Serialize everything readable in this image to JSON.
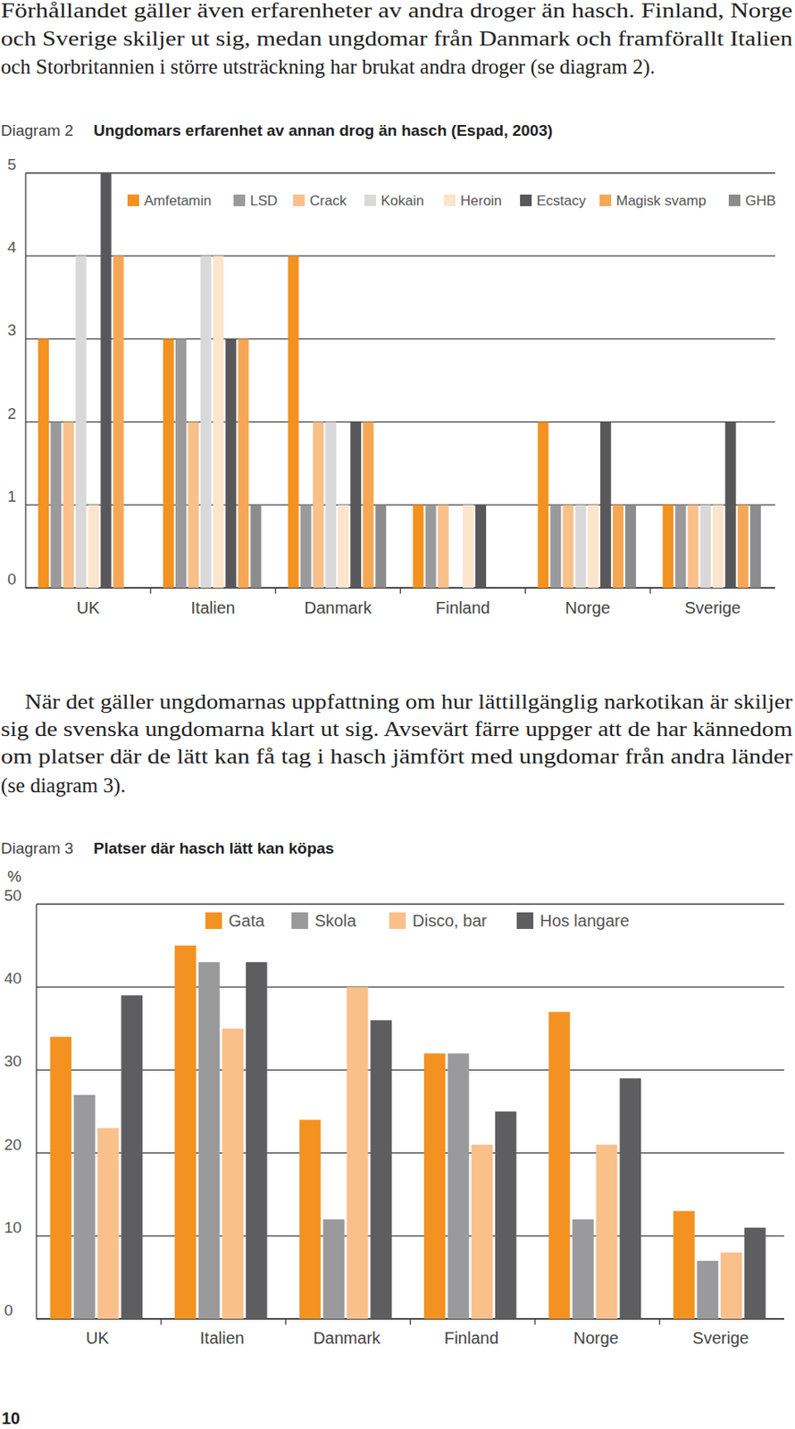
{
  "paragraphs": [
    [
      "Förhållandet gäller även erfarenheter av andra droger än hasch. Finland, Norge",
      "och Sverige skiljer ut sig, medan ungdomar från Danmark och framförallt Italien",
      "och Storbritannien i större utsträckning har brukat andra droger (se diagram 2)."
    ],
    [
      "När det gäller ungdomarnas uppfattning om hur lättillgänglig narkotikan är skiljer",
      "sig de svenska ungdomarna klart ut sig. Avsevärt färre uppger att de har kännedom",
      "om platser där de lätt kan få tag i hasch jämfört med ungdomar från andra länder",
      "(se diagram 3)."
    ]
  ],
  "page_number": "10",
  "chart_data": [
    {
      "type": "bar",
      "figure_label": "Diagram 2",
      "title": "Ungdomars erfarenhet av annan drog än hasch (Espad, 2003)",
      "categories": [
        "UK",
        "Italien",
        "Danmark",
        "Finland",
        "Norge",
        "Sverige"
      ],
      "series": [
        {
          "name": "Amfetamin",
          "color": "#f39220",
          "values": [
            3,
            3,
            4,
            1,
            2,
            1
          ]
        },
        {
          "name": "LSD",
          "color": "#9a9a9c",
          "values": [
            2,
            3,
            1,
            1,
            1,
            1
          ]
        },
        {
          "name": "Crack",
          "color": "#f9c08a",
          "values": [
            2,
            2,
            2,
            1,
            1,
            1
          ]
        },
        {
          "name": "Kokain",
          "color": "#d9d9d9",
          "values": [
            4,
            4,
            2,
            0,
            1,
            1
          ]
        },
        {
          "name": "Heroin",
          "color": "#fde4cc",
          "values": [
            1,
            4,
            1,
            1,
            1,
            1
          ]
        },
        {
          "name": "Ecstacy",
          "color": "#58585a",
          "values": [
            5,
            3,
            2,
            1,
            2,
            2
          ]
        },
        {
          "name": "Magisk svamp",
          "color": "#f6a756",
          "values": [
            4,
            3,
            2,
            0,
            1,
            1
          ]
        },
        {
          "name": "GHB",
          "color": "#8c8c8e",
          "values": [
            0,
            1,
            1,
            0,
            1,
            1
          ]
        }
      ],
      "ylim": [
        0,
        5
      ],
      "yticks": [
        0,
        1,
        2,
        3,
        4,
        5
      ],
      "grid": true,
      "legend": "top"
    },
    {
      "type": "bar",
      "figure_label": "Diagram 3",
      "title": "Platser där hasch lätt kan köpas",
      "y_label": "%",
      "categories": [
        "UK",
        "Italien",
        "Danmark",
        "Finland",
        "Norge",
        "Sverige"
      ],
      "series": [
        {
          "name": "Gata",
          "color": "#f39220",
          "values": [
            34,
            45,
            24,
            32,
            37,
            13
          ]
        },
        {
          "name": "Skola",
          "color": "#9a9a9c",
          "values": [
            27,
            43,
            12,
            32,
            12,
            7
          ]
        },
        {
          "name": "Disco, bar",
          "color": "#f9c08a",
          "values": [
            23,
            35,
            40,
            21,
            21,
            8
          ]
        },
        {
          "name": "Hos langare",
          "color": "#5e5e60",
          "values": [
            39,
            43,
            36,
            25,
            29,
            11
          ]
        }
      ],
      "ylim": [
        0,
        50
      ],
      "yticks": [
        0,
        10,
        20,
        30,
        40,
        50
      ],
      "grid": true,
      "legend": "top"
    }
  ]
}
